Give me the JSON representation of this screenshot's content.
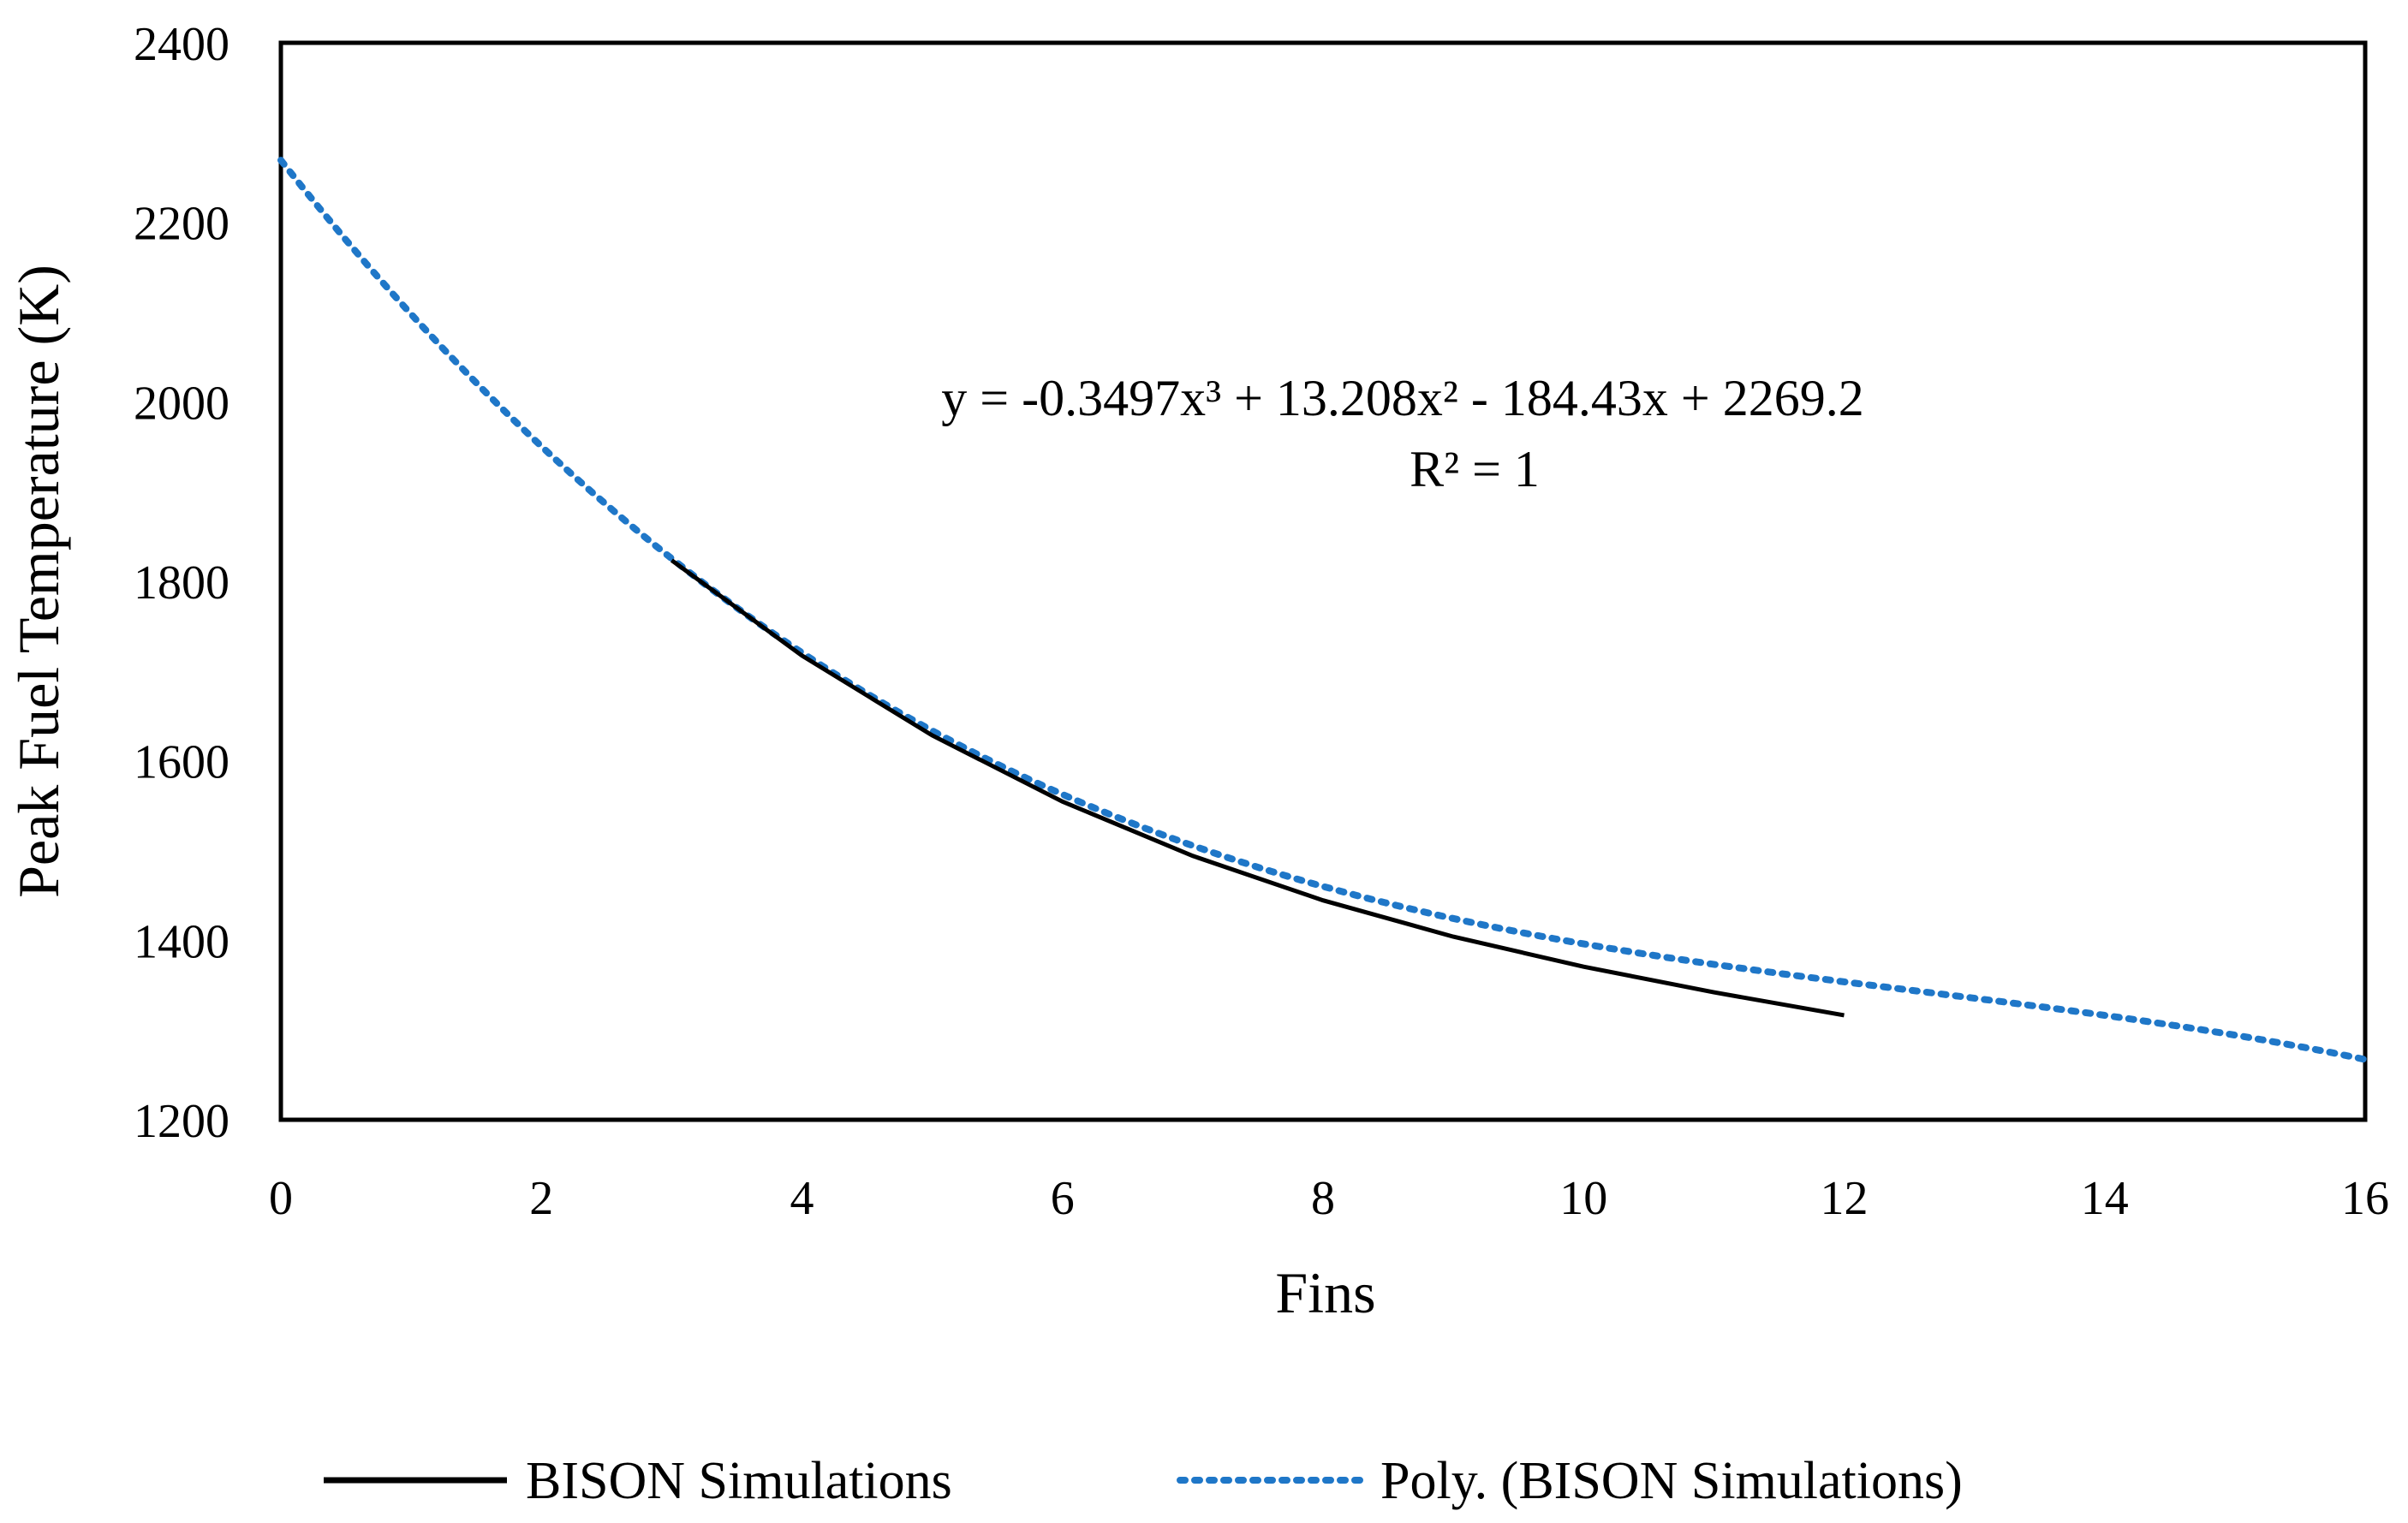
{
  "chart_data": {
    "type": "line",
    "title": "",
    "xlabel": "Fins",
    "ylabel": "Peak Fuel Temperature (K)",
    "xlim": [
      0,
      16
    ],
    "ylim": [
      1200,
      2400
    ],
    "x_ticks": [
      0,
      2,
      4,
      6,
      8,
      10,
      12,
      14,
      16
    ],
    "y_ticks": [
      1200,
      1400,
      1600,
      1800,
      2000,
      2200,
      2400
    ],
    "grid": false,
    "legend_position": "bottom",
    "series": [
      {
        "name": "BISON Simulations",
        "style": "solid",
        "color": "#000000",
        "x": [
          3,
          4,
          5,
          6,
          7,
          8,
          9,
          10,
          11,
          12
        ],
        "y": [
          1823.4,
          1717.2,
          1628.3,
          1554.6,
          1494.0,
          1444.5,
          1404.0,
          1370.6,
          1342.0,
          1316.5
        ]
      },
      {
        "name": "Poly. (BISON Simulations)",
        "style": "dotted",
        "color": "#1f77c8",
        "fit": {
          "type": "poly3",
          "coefficients": [
            -0.3497,
            13.208,
            -184.43,
            2269.2
          ]
        },
        "x_range": [
          0,
          16
        ]
      }
    ],
    "annotations": [
      {
        "text": "y = -0.3497x³ + 13.208x² - 184.43x + 2269.2"
      },
      {
        "text": "R² = 1"
      }
    ]
  }
}
